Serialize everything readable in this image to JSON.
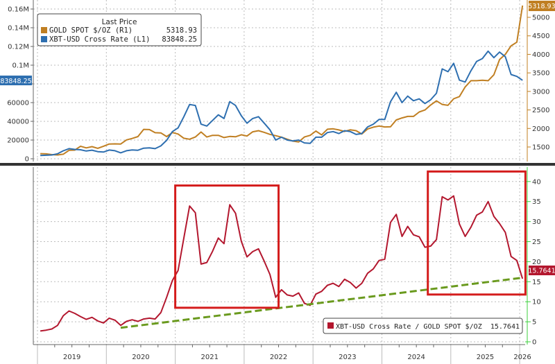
{
  "chart_data": [
    {
      "type": "line",
      "panel": "top",
      "legend": {
        "title": "Last Price",
        "placement": "top-left"
      },
      "x_ticks": [
        "2019",
        "2020",
        "2021",
        "2022",
        "2023",
        "2024",
        "2025",
        "2026"
      ],
      "left_axis": {
        "ticks": [
          0,
          20000,
          40000,
          60000,
          80000,
          100000,
          120000,
          140000,
          160000
        ],
        "tick_labels": [
          "0",
          "20000",
          "40000",
          "60000",
          "",
          "0.1M",
          "0.12M",
          "0.14M",
          "0.16M"
        ],
        "ylim": [
          0,
          165000
        ]
      },
      "right_axis": {
        "ticks": [
          1500,
          2000,
          2500,
          3000,
          3500,
          4000,
          4500,
          5000
        ],
        "tick_labels": [
          "1500",
          "2000",
          "2500",
          "3000",
          "3500",
          "4000",
          "4500",
          "5000"
        ],
        "ylim": [
          1200,
          5400
        ]
      },
      "grid": true,
      "x": [
        "2019-01",
        "2019-02",
        "2019-03",
        "2019-04",
        "2019-05",
        "2019-06",
        "2019-07",
        "2019-08",
        "2019-09",
        "2019-10",
        "2019-11",
        "2019-12",
        "2020-01",
        "2020-02",
        "2020-03",
        "2020-04",
        "2020-05",
        "2020-06",
        "2020-07",
        "2020-08",
        "2020-09",
        "2020-10",
        "2020-11",
        "2020-12",
        "2021-01",
        "2021-02",
        "2021-03",
        "2021-04",
        "2021-05",
        "2021-06",
        "2021-07",
        "2021-08",
        "2021-09",
        "2021-10",
        "2021-11",
        "2021-12",
        "2022-01",
        "2022-02",
        "2022-03",
        "2022-04",
        "2022-05",
        "2022-06",
        "2022-07",
        "2022-08",
        "2022-09",
        "2022-10",
        "2022-11",
        "2022-12",
        "2023-01",
        "2023-02",
        "2023-03",
        "2023-04",
        "2023-05",
        "2023-06",
        "2023-07",
        "2023-08",
        "2023-09",
        "2023-10",
        "2023-11",
        "2023-12",
        "2024-01",
        "2024-02",
        "2024-03",
        "2024-04",
        "2024-05",
        "2024-06",
        "2024-07",
        "2024-08",
        "2024-09",
        "2024-10",
        "2024-11",
        "2024-12",
        "2025-01",
        "2025-02",
        "2025-03",
        "2025-04",
        "2025-05",
        "2025-06",
        "2025-07",
        "2025-08",
        "2025-09",
        "2025-10",
        "2025-11",
        "2025-12",
        "2026-01"
      ],
      "series": [
        {
          "name": "GOLD SPOT $/OZ  (R1)",
          "last": "5318.93",
          "axis": "right",
          "color": "#c07f22",
          "values": [
            1320,
            1315,
            1295,
            1285,
            1305,
            1410,
            1415,
            1520,
            1475,
            1510,
            1465,
            1520,
            1580,
            1585,
            1580,
            1690,
            1730,
            1780,
            1975,
            1970,
            1885,
            1880,
            1780,
            1890,
            1850,
            1735,
            1710,
            1770,
            1905,
            1770,
            1815,
            1815,
            1755,
            1785,
            1775,
            1830,
            1795,
            1910,
            1940,
            1895,
            1840,
            1805,
            1765,
            1710,
            1660,
            1635,
            1770,
            1815,
            1930,
            1825,
            1980,
            1990,
            1960,
            1920,
            1965,
            1940,
            1850,
            1985,
            2035,
            2065,
            2040,
            2045,
            2230,
            2285,
            2325,
            2325,
            2445,
            2500,
            2635,
            2745,
            2650,
            2625,
            2800,
            2860,
            3120,
            3290,
            3290,
            3300,
            3290,
            3450,
            3860,
            4000,
            4230,
            4330,
            5318.93
          ]
        },
        {
          "name": "XBT-USD Cross Rate  (L1)",
          "last": "83848.25",
          "axis": "left",
          "color": "#2e6fb0",
          "values": [
            3500,
            3800,
            4100,
            5300,
            8500,
            10800,
            10000,
            9600,
            8300,
            9200,
            7600,
            7200,
            9300,
            8600,
            6400,
            8600,
            9500,
            9100,
            11300,
            11600,
            10800,
            13800,
            19700,
            29000,
            33000,
            45000,
            58000,
            57000,
            37000,
            35000,
            41000,
            47000,
            43000,
            61000,
            57000,
            46000,
            38000,
            43000,
            45000,
            38000,
            31000,
            20000,
            23000,
            20000,
            19000,
            20000,
            17000,
            16500,
            23000,
            23000,
            28000,
            29000,
            27000,
            30000,
            29000,
            26000,
            27000,
            34000,
            37000,
            42000,
            42000,
            61000,
            71000,
            60000,
            67000,
            62000,
            64000,
            59000,
            63000,
            70000,
            96000,
            93000,
            102000,
            84000,
            82000,
            94000,
            104000,
            107000,
            115000,
            108000,
            114000,
            109000,
            90000,
            88000,
            83848.25
          ]
        }
      ],
      "tags": {
        "left": "83848.25",
        "right": "5318.93"
      }
    },
    {
      "type": "line",
      "panel": "bottom",
      "legend": {
        "placement": "bottom-right"
      },
      "right_axis": {
        "ticks": [
          0,
          5,
          10,
          15,
          20,
          25,
          30,
          35,
          40
        ],
        "tick_labels": [
          "0",
          "5",
          "10",
          "15",
          "20",
          "25",
          "30",
          "35",
          "40"
        ],
        "ylim": [
          0,
          43
        ]
      },
      "grid": true,
      "series": [
        {
          "name": "XBT-USD Cross Rate / GOLD SPOT $/OZ",
          "last": "15.7641",
          "color": "#b3172e",
          "values": [
            2.7,
            2.9,
            3.2,
            4.1,
            6.5,
            7.7,
            7.1,
            6.3,
            5.6,
            6.1,
            5.2,
            4.7,
            5.9,
            5.4,
            4.1,
            5.1,
            5.5,
            5.1,
            5.7,
            5.9,
            5.7,
            7.3,
            11.1,
            15.3,
            17.8,
            25.9,
            33.9,
            32.2,
            19.4,
            19.8,
            22.6,
            25.9,
            24.5,
            34.2,
            32.1,
            25.1,
            21.2,
            22.5,
            23.2,
            20.1,
            16.8,
            11.1,
            13.0,
            11.7,
            11.4,
            12.2,
            9.6,
            9.1,
            11.9,
            12.6,
            14.1,
            14.6,
            13.8,
            15.6,
            14.8,
            13.4,
            14.6,
            17.1,
            18.2,
            20.3,
            20.6,
            29.8,
            31.8,
            26.3,
            28.8,
            26.7,
            26.2,
            23.6,
            23.9,
            25.5,
            36.2,
            35.4,
            36.4,
            29.4,
            26.3,
            28.6,
            31.6,
            32.4,
            35.0,
            31.3,
            29.5,
            27.3,
            21.3,
            20.3,
            15.7641
          ]
        }
      ],
      "annotations": {
        "trend_line": {
          "color": "#6a9a1e",
          "style": "dashed",
          "from": {
            "x": "2020-03",
            "y": 3.5
          },
          "to": {
            "x": "2026-01",
            "y": 16
          }
        },
        "boxes": [
          {
            "color": "#d41c1c",
            "x": [
              "2021-01",
              "2022-07"
            ],
            "y": [
              8.5,
              39
            ]
          },
          {
            "color": "#d41c1c",
            "x": [
              "2024-09",
              "2026-02"
            ],
            "y": [
              11.8,
              42.5
            ]
          }
        ]
      },
      "tags": {
        "right": "15.7641"
      }
    }
  ]
}
